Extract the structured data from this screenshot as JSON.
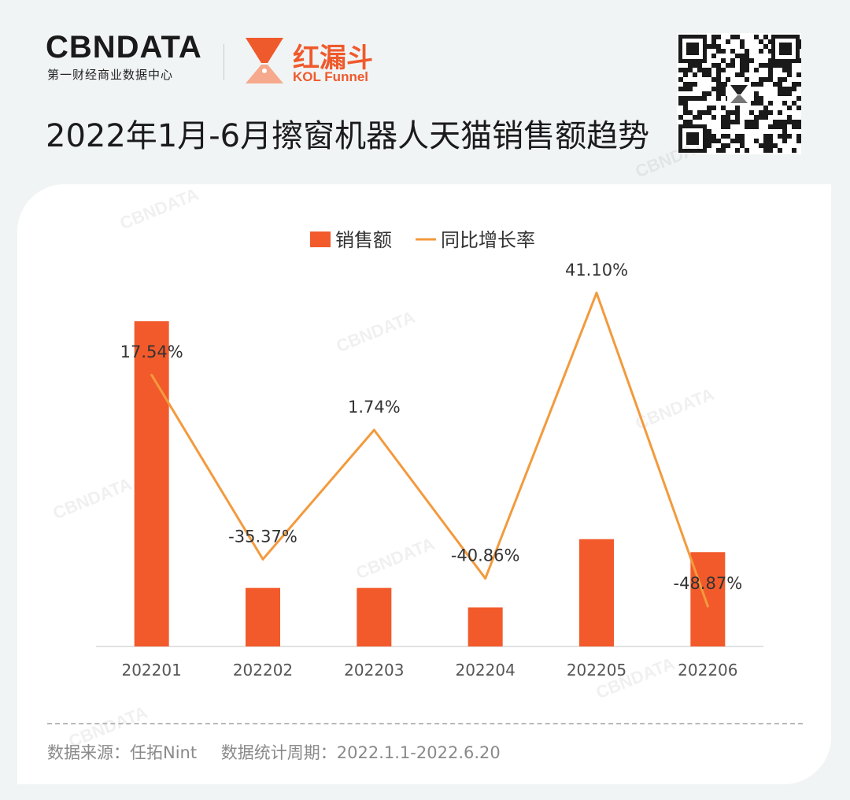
{
  "header": {
    "brand": "CBNDATA",
    "brand_sub": "第一财经商业数据中心",
    "partner_cn": "红漏斗",
    "partner_en": "KOL Funnel",
    "title": "2022年1月-6月擦窗机器人天猫销售额趋势"
  },
  "footer": {
    "source": "数据来源：任拓Nint",
    "period": "数据统计周期：2022.1.1-2022.6.20"
  },
  "watermark": "CBNDATA",
  "colors": {
    "bar": "#f25a2b",
    "line": "#f39a3d",
    "brand_orange": "#ef5a2c"
  },
  "chart_data": {
    "type": "bar",
    "legend_position": "top",
    "categories": [
      "202201",
      "202202",
      "202203",
      "202204",
      "202205",
      "202206"
    ],
    "series": [
      {
        "name": "销售额",
        "type": "bar",
        "values": [
          100,
          18,
          18,
          12,
          33,
          29
        ]
      },
      {
        "name": "同比增长率",
        "type": "line",
        "values": [
          17.54,
          -35.37,
          1.74,
          -40.86,
          41.1,
          -48.87
        ]
      }
    ],
    "line_labels": [
      "17.54%",
      "-35.37%",
      "1.74%",
      "-40.86%",
      "41.10%",
      "-48.87%"
    ],
    "line_ylim": [
      -48.87,
      41.1
    ],
    "bar_ylim": [
      0,
      100
    ],
    "grid": false
  }
}
